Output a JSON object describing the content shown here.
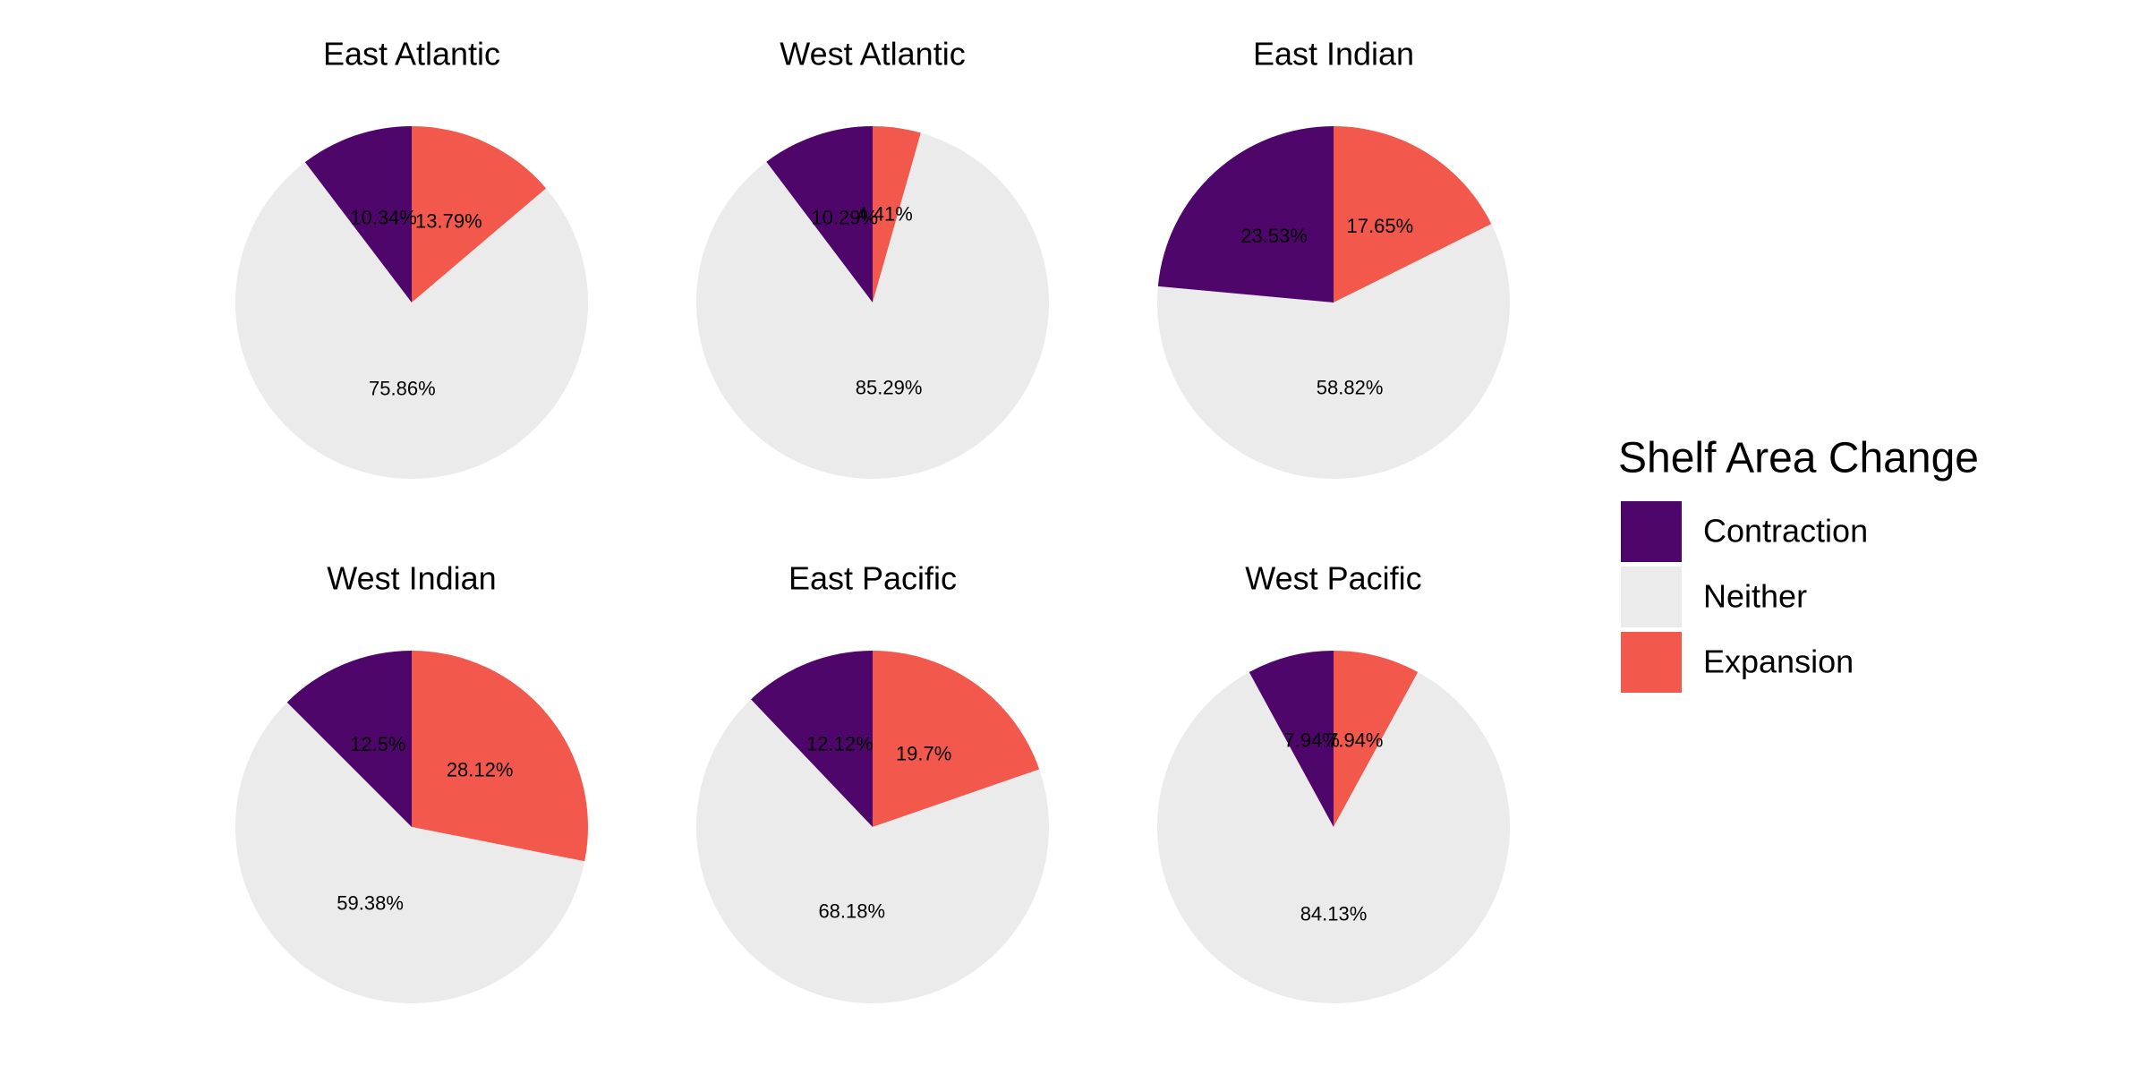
{
  "chart_data": {
    "type": "pie",
    "legend": {
      "title": "Shelf Area Change",
      "placement": "right",
      "items": [
        {
          "key": "contraction",
          "label": "Contraction",
          "color": "#4f066b"
        },
        {
          "key": "neither",
          "label": "Neither",
          "color": "#ebebeb"
        },
        {
          "key": "expansion",
          "label": "Expansion",
          "color": "#f2584c"
        }
      ]
    },
    "panels": [
      {
        "title": "East Atlantic",
        "slices": [
          {
            "category": "Expansion",
            "value": 13.79,
            "label": "13.79%"
          },
          {
            "category": "Neither",
            "value": 75.86,
            "label": "75.86%"
          },
          {
            "category": "Contraction",
            "value": 10.34,
            "label": "10.34%"
          }
        ]
      },
      {
        "title": "West Atlantic",
        "slices": [
          {
            "category": "Expansion",
            "value": 4.41,
            "label": "4.41%"
          },
          {
            "category": "Neither",
            "value": 85.29,
            "label": "85.29%"
          },
          {
            "category": "Contraction",
            "value": 10.29,
            "label": "10.29%"
          }
        ]
      },
      {
        "title": "East Indian",
        "slices": [
          {
            "category": "Expansion",
            "value": 17.65,
            "label": "17.65%"
          },
          {
            "category": "Neither",
            "value": 58.82,
            "label": "58.82%"
          },
          {
            "category": "Contraction",
            "value": 23.53,
            "label": "23.53%"
          }
        ]
      },
      {
        "title": "West Indian",
        "slices": [
          {
            "category": "Expansion",
            "value": 28.12,
            "label": "28.12%"
          },
          {
            "category": "Neither",
            "value": 59.38,
            "label": "59.38%"
          },
          {
            "category": "Contraction",
            "value": 12.5,
            "label": "12.5%"
          }
        ]
      },
      {
        "title": "East Pacific",
        "slices": [
          {
            "category": "Expansion",
            "value": 19.7,
            "label": "19.7%"
          },
          {
            "category": "Neither",
            "value": 68.18,
            "label": "68.18%"
          },
          {
            "category": "Contraction",
            "value": 12.12,
            "label": "12.12%"
          }
        ]
      },
      {
        "title": "West Pacific",
        "slices": [
          {
            "category": "Expansion",
            "value": 7.94,
            "label": "7.94%"
          },
          {
            "category": "Neither",
            "value": 84.13,
            "label": "84.13%"
          },
          {
            "category": "Contraction",
            "value": 7.94,
            "label": "7.94%"
          }
        ]
      }
    ]
  }
}
